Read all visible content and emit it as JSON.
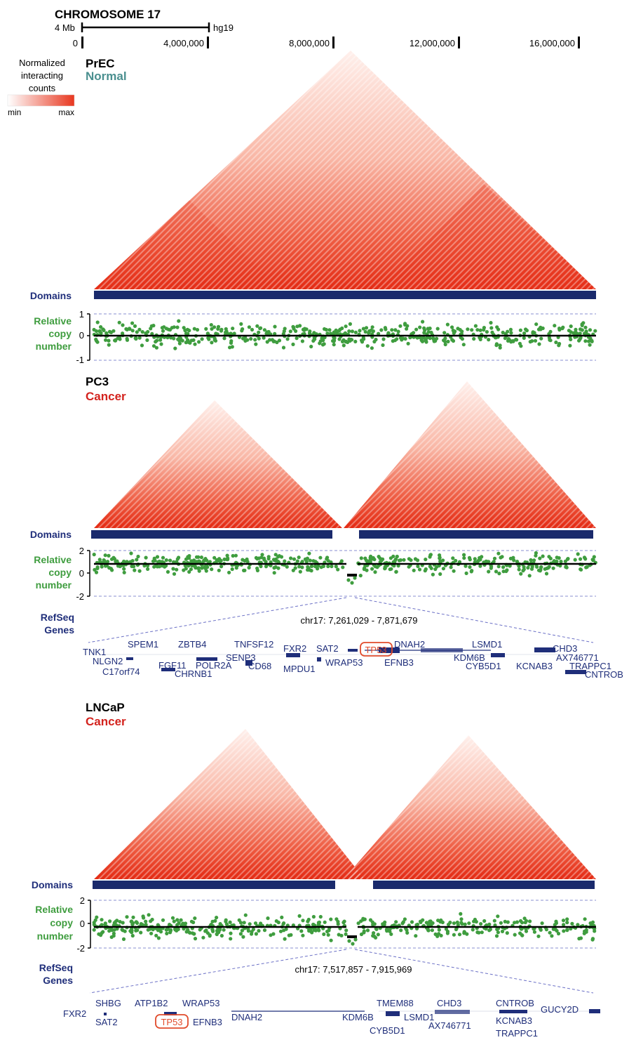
{
  "header": {
    "title": "CHROMOSOME 17",
    "scalebar_label": "4 Mb",
    "assembly": "hg19",
    "ticks": [
      "0",
      "4,000,000",
      "8,000,000",
      "12,000,000",
      "16,000,000"
    ]
  },
  "legend": {
    "title_lines": [
      "Normalized",
      "interacting",
      "counts"
    ],
    "min": "min",
    "max": "max",
    "colors": [
      "#ffffff",
      "#e8371f"
    ]
  },
  "colors": {
    "heat": "#e8371f",
    "domain": "#1a2a6c",
    "copy_points": "#3f9d3f",
    "label_blue": "#1f2e7a",
    "label_green": "#3f9d3f",
    "cancer_red": "#d3231e",
    "normal_teal": "#4a8f8f",
    "highlight_box": "#e14b2b"
  },
  "panels": [
    {
      "cell": "PrEC",
      "status": "Normal",
      "domains_label": "Domains",
      "copy_label_lines": [
        "Relative",
        "copy",
        "number"
      ],
      "copy_ticks": [
        "1",
        "0",
        "-1"
      ]
    },
    {
      "cell": "PC3",
      "status": "Cancer",
      "domains_label": "Domains",
      "copy_label_lines": [
        "Relative",
        "copy",
        "number"
      ],
      "copy_ticks": [
        "2",
        "0",
        "-2"
      ],
      "refseq_label_lines": [
        "RefSeq",
        "Genes"
      ],
      "zoom_region": "chr17: 7,261,029 - 7,871,679",
      "genes": [
        "TNK1",
        "SPEM1",
        "ZBTB4",
        "TNFSF12",
        "FXR2",
        "SAT2",
        "TP53",
        "DNAH2",
        "LSMD1",
        "CHD3",
        "NLGN2",
        "FGF11",
        "POLR2A",
        "SENP3",
        "WRAP53",
        "EFNB3",
        "KDM6B",
        "AX746771",
        "C17orf74",
        "CHRNB1",
        "CD68",
        "MPDU1",
        "CYB5D1",
        "KCNAB3",
        "TRAPPC1",
        "CNTROB"
      ]
    },
    {
      "cell": "LNCaP",
      "status": "Cancer",
      "domains_label": "Domains",
      "copy_label_lines": [
        "Relative",
        "copy",
        "number"
      ],
      "copy_ticks": [
        "2",
        "0",
        "-2"
      ],
      "refseq_label_lines": [
        "RefSeq",
        "Genes"
      ],
      "zoom_region": "chr17: 7,517,857 - 7,915,969",
      "genes": [
        "FXR2",
        "SHBG",
        "ATP1B2",
        "WRAP53",
        "TMEM88",
        "CHD3",
        "CNTROB",
        "GUCY2D",
        "SAT2",
        "TP53",
        "EFNB3",
        "DNAH2",
        "KDM6B",
        "LSMD1",
        "AX746771",
        "KCNAB3",
        "CYB5D1",
        "TRAPPC1"
      ]
    }
  ]
}
